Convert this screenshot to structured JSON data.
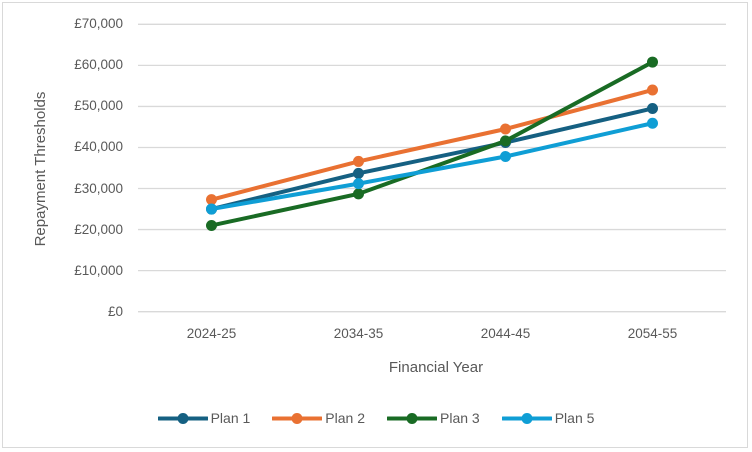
{
  "chart_data": {
    "type": "line",
    "title": "",
    "categories": [
      "2024-25",
      "2034-35",
      "2044-45",
      "2054-55"
    ],
    "series": [
      {
        "name": "Plan 1",
        "color": "#156082",
        "values": [
          24990,
          33700,
          41200,
          49500
        ]
      },
      {
        "name": "Plan 2",
        "color": "#E97132",
        "values": [
          27295,
          36600,
          44500,
          54000
        ]
      },
      {
        "name": "Plan 3",
        "color": "#196B24",
        "values": [
          21000,
          28700,
          41600,
          60800
        ]
      },
      {
        "name": "Plan 5",
        "color": "#0F9ED5",
        "values": [
          25000,
          31200,
          37800,
          45900
        ]
      }
    ],
    "xlabel": "Financial Year",
    "ylabel": "Repayment Thresholds",
    "ylim": [
      0,
      70000
    ],
    "ytick_step": 10000,
    "ytick_labels": [
      "£0",
      "£10,000",
      "£20,000",
      "£30,000",
      "£40,000",
      "£50,000",
      "£60,000",
      "£70,000"
    ],
    "grid": "horizontal",
    "legend_position": "bottom",
    "marker": "circle"
  },
  "style": {
    "gridline_color": "#d9d9d9",
    "text_color": "#595959",
    "border_color": "#d9d9d9",
    "background": "#ffffff",
    "line_width": 4,
    "marker_radius": 5.5
  }
}
